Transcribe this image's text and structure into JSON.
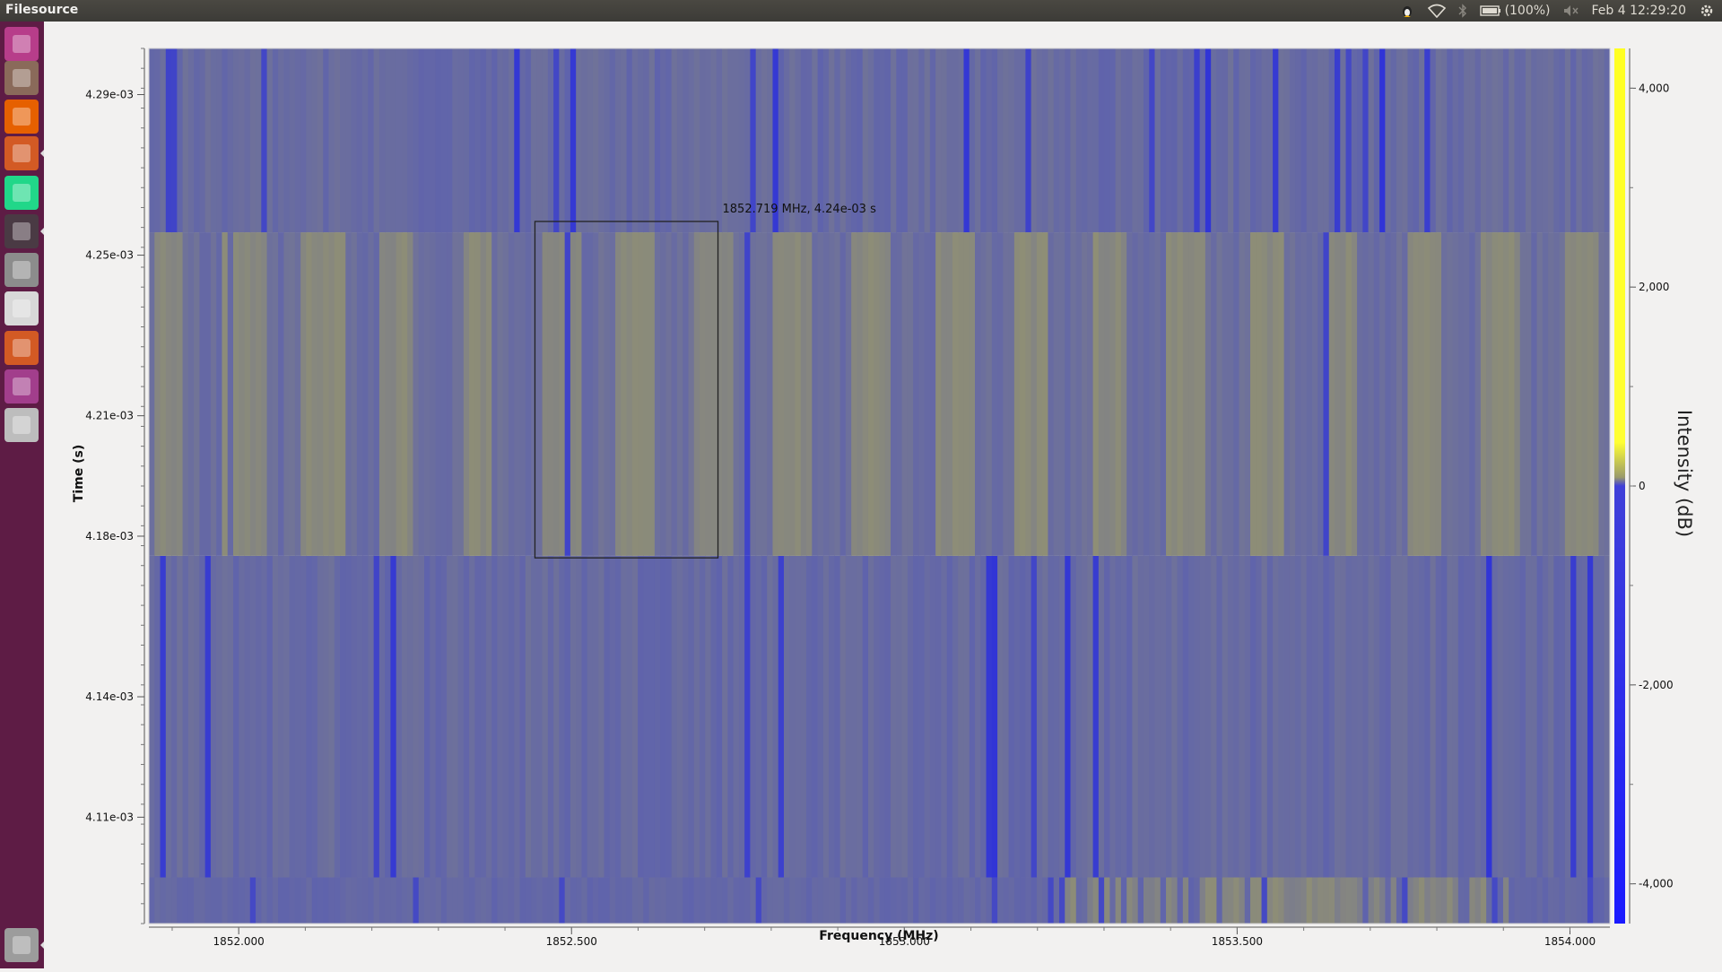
{
  "window": {
    "title": "Filesource"
  },
  "panel": {
    "battery": "(100%)",
    "datetime": "Feb 4 12:29:20"
  },
  "launcher": {
    "items": [
      {
        "name": "dash-home-icon",
        "color": "#b73d8a"
      },
      {
        "name": "files-icon",
        "color": "#8a6a5a"
      },
      {
        "name": "firefox-icon",
        "color": "#e66000"
      },
      {
        "name": "gnuradio-companion-icon",
        "color": "#d35a24"
      },
      {
        "name": "pycharm-icon",
        "color": "#21d789"
      },
      {
        "name": "terminal-window-icon",
        "color": "#4a3a44"
      },
      {
        "name": "help-icon",
        "color": "#8c8c8c"
      },
      {
        "name": "text-editor-icon",
        "color": "#d8d8d8"
      },
      {
        "name": "gnuradio-app-icon",
        "color": "#d35a24"
      },
      {
        "name": "window-app-icon",
        "color": "#a23e8c"
      },
      {
        "name": "disk-drive-icon",
        "color": "#bdbdbd"
      },
      {
        "name": "trash-icon",
        "color": "#9c9c9c"
      }
    ]
  },
  "chart_data": {
    "type": "heatmap",
    "xlabel": "Frequency (MHz)",
    "ylabel": "Time (s)",
    "colorbar_label": "Intensity (dB)",
    "xlim": [
      1851.865,
      1854.06
    ],
    "ylim": [
      0.0040835,
      0.0043015
    ],
    "x_ticks": [
      {
        "value": 1852.0,
        "label": "1852.000"
      },
      {
        "value": 1852.5,
        "label": "1852.500"
      },
      {
        "value": 1853.0,
        "label": "1853.000"
      },
      {
        "value": 1853.5,
        "label": "1853.500"
      },
      {
        "value": 1854.0,
        "label": "1854.000"
      }
    ],
    "y_ticks": [
      {
        "value": 0.00429,
        "label": "4.29e-03"
      },
      {
        "value": 0.00425,
        "label": "4.25e-03"
      },
      {
        "value": 0.00421,
        "label": "4.21e-03"
      },
      {
        "value": 0.00418,
        "label": "4.18e-03"
      },
      {
        "value": 0.00414,
        "label": "4.14e-03"
      },
      {
        "value": 0.00411,
        "label": "4.11e-03"
      }
    ],
    "colorbar_range": [
      -4400,
      4400
    ],
    "colorbar_ticks": [
      {
        "value": 4000,
        "label": "4,000"
      },
      {
        "value": 2000,
        "label": "2,000"
      },
      {
        "value": 0,
        "label": "0"
      },
      {
        "value": -2000,
        "label": "-2,000"
      },
      {
        "value": -4000,
        "label": "-4,000"
      }
    ],
    "bands": [
      {
        "t_start": 0.0040835,
        "t_end": 0.004095,
        "tone": "mixed-low"
      },
      {
        "t_start": 0.004095,
        "t_end": 0.0041751,
        "tone": "low"
      },
      {
        "t_start": 0.0041751,
        "t_end": 0.0042557,
        "tone": "high"
      },
      {
        "t_start": 0.0042557,
        "t_end": 0.0043015,
        "tone": "low"
      }
    ],
    "cursor": {
      "label": "1852.719 MHz, 4.24e-03 s",
      "freq_range": [
        1852.445,
        1852.72
      ],
      "time_range": [
        0.0041746,
        0.0042584
      ]
    },
    "colors": {
      "low": "#5f63ac",
      "high": "#8e8e76",
      "deep": "#2b2fdc",
      "colorbar_top": "#ffff22",
      "colorbar_mid": "#9a9a6a",
      "colorbar_bottom": "#1a1aff"
    }
  }
}
